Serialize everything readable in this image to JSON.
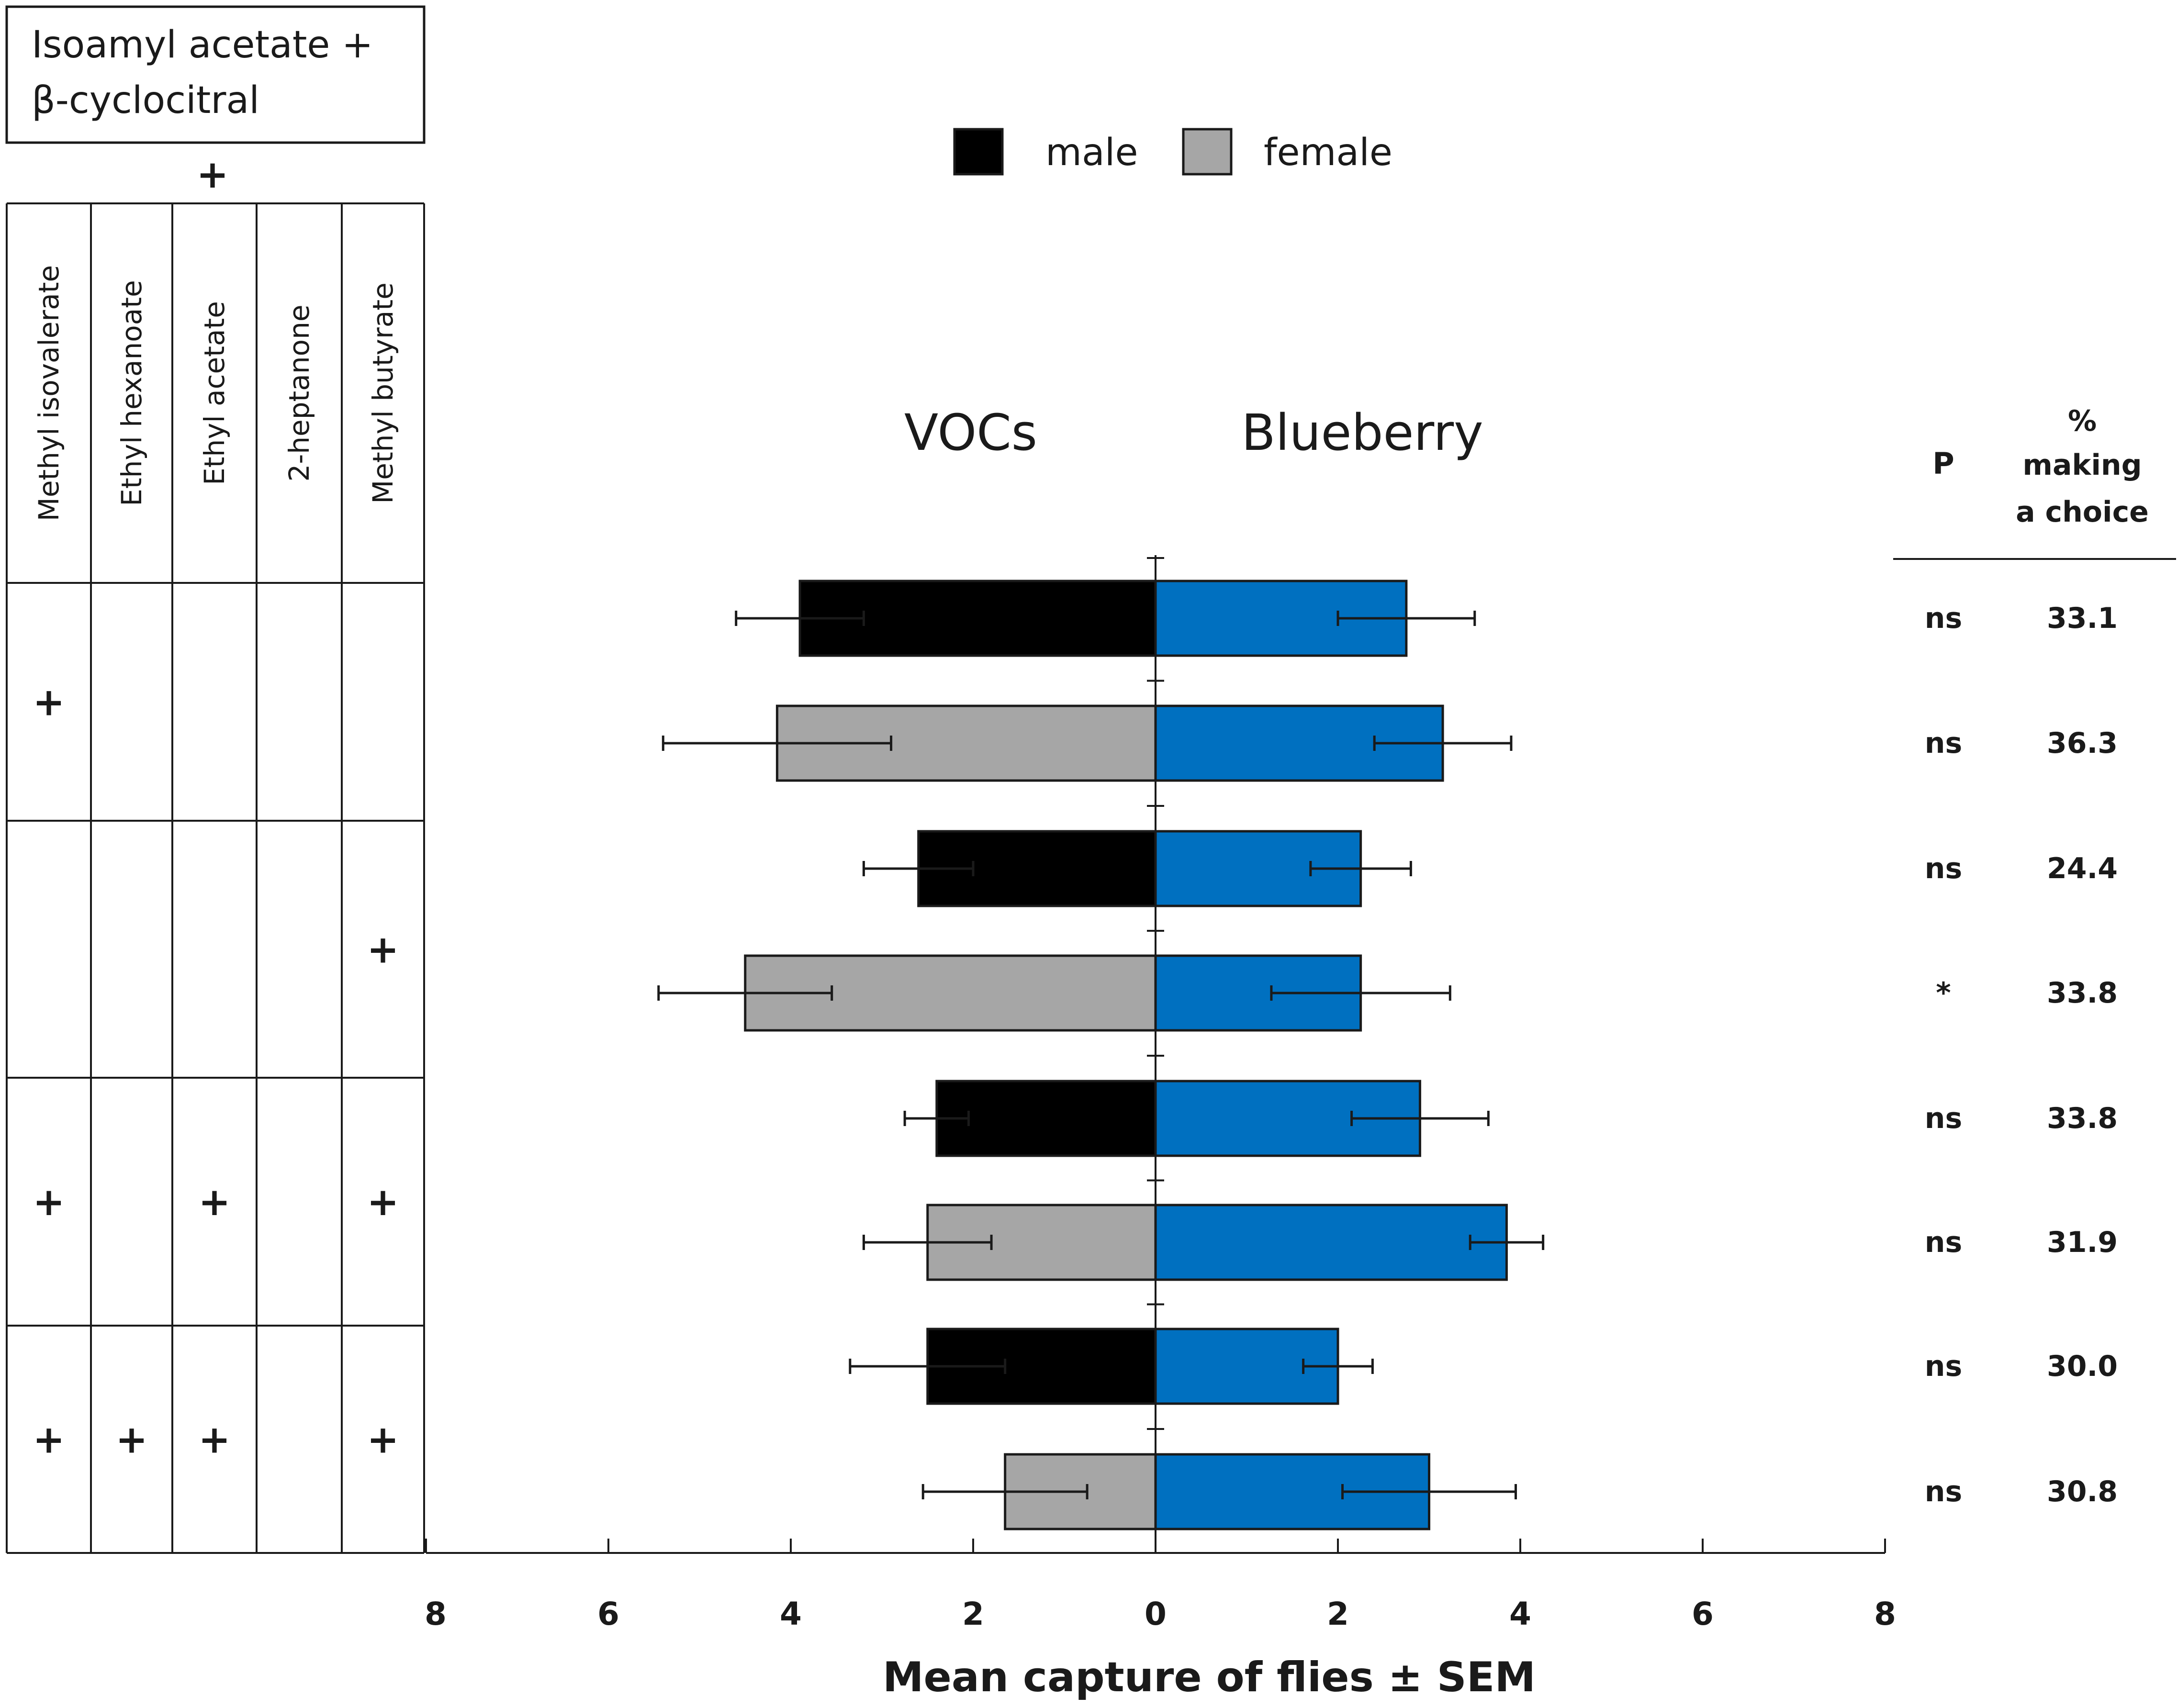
{
  "chart_data": {
    "type": "bar",
    "orientation": "horizontal-diverging",
    "title": "",
    "xlabel": "Mean capture of flies ± SEM",
    "x_tick_labels": [
      "8",
      "6",
      "4",
      "2",
      "0",
      "2",
      "4",
      "6",
      "8"
    ],
    "xlim": [
      -8,
      8
    ],
    "side_labels": {
      "left": "VOCs",
      "right": "Blueberry"
    },
    "legend": {
      "placement": "top-center",
      "items": [
        {
          "name": "male",
          "color": "#000000"
        },
        {
          "name": "female",
          "color": "#a6a6a6"
        }
      ]
    },
    "blueberry_color": "#0070c0",
    "table": {
      "base_blend": "Isoamyl acetate + β-cyclocitral",
      "plus_sign": "+",
      "compounds": [
        "Methyl isovalerate",
        "Ethyl hexanoate",
        "Ethyl acetate",
        "2-heptanone",
        "Methyl butyrate"
      ],
      "groups": [
        {
          "marks": [
            "+",
            "",
            "",
            "",
            ""
          ]
        },
        {
          "marks": [
            "",
            "",
            "",
            "",
            "+"
          ]
        },
        {
          "marks": [
            "+",
            "",
            "+",
            "",
            "+"
          ]
        },
        {
          "marks": [
            "+",
            "+",
            "+",
            "",
            "+"
          ]
        }
      ]
    },
    "stats_headers": {
      "p": "P",
      "pct_line1": "%",
      "pct_line2": "making",
      "pct_line3": "a choice"
    },
    "series": [
      {
        "name": "male",
        "group": 0,
        "vocs": 3.9,
        "vocs_sem": 0.7,
        "blueberry": 2.75,
        "blueberry_sem": 0.75,
        "p": "ns",
        "pct": "33.1"
      },
      {
        "name": "female",
        "group": 0,
        "vocs": 4.15,
        "vocs_sem": 1.25,
        "blueberry": 3.15,
        "blueberry_sem": 0.75,
        "p": "ns",
        "pct": "36.3"
      },
      {
        "name": "male",
        "group": 1,
        "vocs": 2.6,
        "vocs_sem": 0.6,
        "blueberry": 2.25,
        "blueberry_sem": 0.55,
        "p": "ns",
        "pct": "24.4"
      },
      {
        "name": "female",
        "group": 1,
        "vocs": 4.5,
        "vocs_sem": 0.95,
        "blueberry": 2.25,
        "blueberry_sem": 0.98,
        "p": "*",
        "pct": "33.8"
      },
      {
        "name": "male",
        "group": 2,
        "vocs": 2.4,
        "vocs_sem": 0.35,
        "blueberry": 2.9,
        "blueberry_sem": 0.75,
        "p": "ns",
        "pct": "33.8"
      },
      {
        "name": "female",
        "group": 2,
        "vocs": 2.5,
        "vocs_sem": 0.7,
        "blueberry": 3.85,
        "blueberry_sem": 0.4,
        "p": "ns",
        "pct": "31.9"
      },
      {
        "name": "male",
        "group": 3,
        "vocs": 2.5,
        "vocs_sem": 0.85,
        "blueberry": 2.0,
        "blueberry_sem": 0.38,
        "p": "ns",
        "pct": "30.0"
      },
      {
        "name": "female",
        "group": 3,
        "vocs": 1.65,
        "vocs_sem": 0.9,
        "blueberry": 3.0,
        "blueberry_sem": 0.95,
        "p": "ns",
        "pct": "30.8"
      }
    ]
  }
}
